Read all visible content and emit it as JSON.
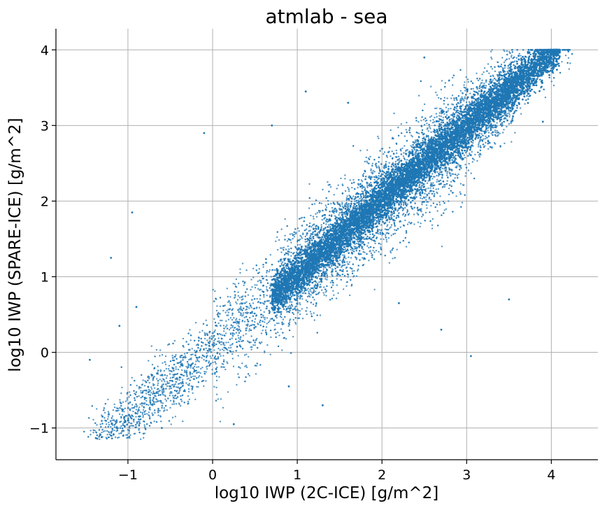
{
  "chart_data": {
    "type": "scatter",
    "title": "atmlab - sea",
    "xlabel": "log10 IWP (2C-ICE) [g/m^2]",
    "ylabel": "log10 IWP (SPARE-ICE) [g/m^2]",
    "xlim": [
      -1.85,
      4.55
    ],
    "ylim": [
      -1.42,
      4.28
    ],
    "xticks": [
      -1,
      0,
      1,
      2,
      3,
      4
    ],
    "yticks": [
      -1,
      0,
      1,
      2,
      3,
      4
    ],
    "xtick_labels": [
      "−1",
      "0",
      "1",
      "2",
      "3",
      "4"
    ],
    "ytick_labels": [
      "−1",
      "0",
      "1",
      "2",
      "3",
      "4"
    ],
    "grid": true,
    "marker_color": "#1f77b4",
    "series": [
      {
        "distribution": {
          "x_range": [
            -1.55,
            4.25
          ],
          "ridge": "y ≈ x (one-to-one), dense core from x ≈ 0.8 to 3.6",
          "y_cap": 4.0,
          "y_floor": -1.15
        },
        "points": [
          [
            -1.3,
            -0.85
          ],
          [
            -1.0,
            -0.9
          ],
          [
            -0.8,
            -0.6
          ],
          [
            -0.5,
            -0.45
          ],
          [
            -0.2,
            0.0
          ],
          [
            0.0,
            0.1
          ],
          [
            0.3,
            0.4
          ],
          [
            0.6,
            0.8
          ],
          [
            1.0,
            1.1
          ],
          [
            1.3,
            1.4
          ],
          [
            1.6,
            1.7
          ],
          [
            2.0,
            2.05
          ],
          [
            2.3,
            2.35
          ],
          [
            2.6,
            2.6
          ],
          [
            3.0,
            2.95
          ],
          [
            3.3,
            3.3
          ],
          [
            3.6,
            3.55
          ],
          [
            3.9,
            3.9
          ],
          [
            4.1,
            4.0
          ],
          [
            4.2,
            4.0
          ],
          [
            -1.2,
            1.25
          ],
          [
            -0.95,
            1.85
          ],
          [
            -0.9,
            0.6
          ],
          [
            -1.1,
            0.35
          ],
          [
            -0.1,
            2.9
          ],
          [
            0.7,
            3.0
          ],
          [
            1.1,
            3.45
          ],
          [
            1.6,
            3.3
          ],
          [
            2.5,
            3.9
          ],
          [
            3.05,
            -0.05
          ],
          [
            2.7,
            0.3
          ],
          [
            3.5,
            0.7
          ],
          [
            2.2,
            0.65
          ],
          [
            1.3,
            -0.7
          ],
          [
            0.9,
            -0.45
          ],
          [
            -0.6,
            -1.0
          ],
          [
            -1.45,
            -0.1
          ],
          [
            -1.2,
            -1.1
          ],
          [
            3.9,
            3.05
          ],
          [
            0.25,
            -0.95
          ]
        ]
      }
    ]
  }
}
